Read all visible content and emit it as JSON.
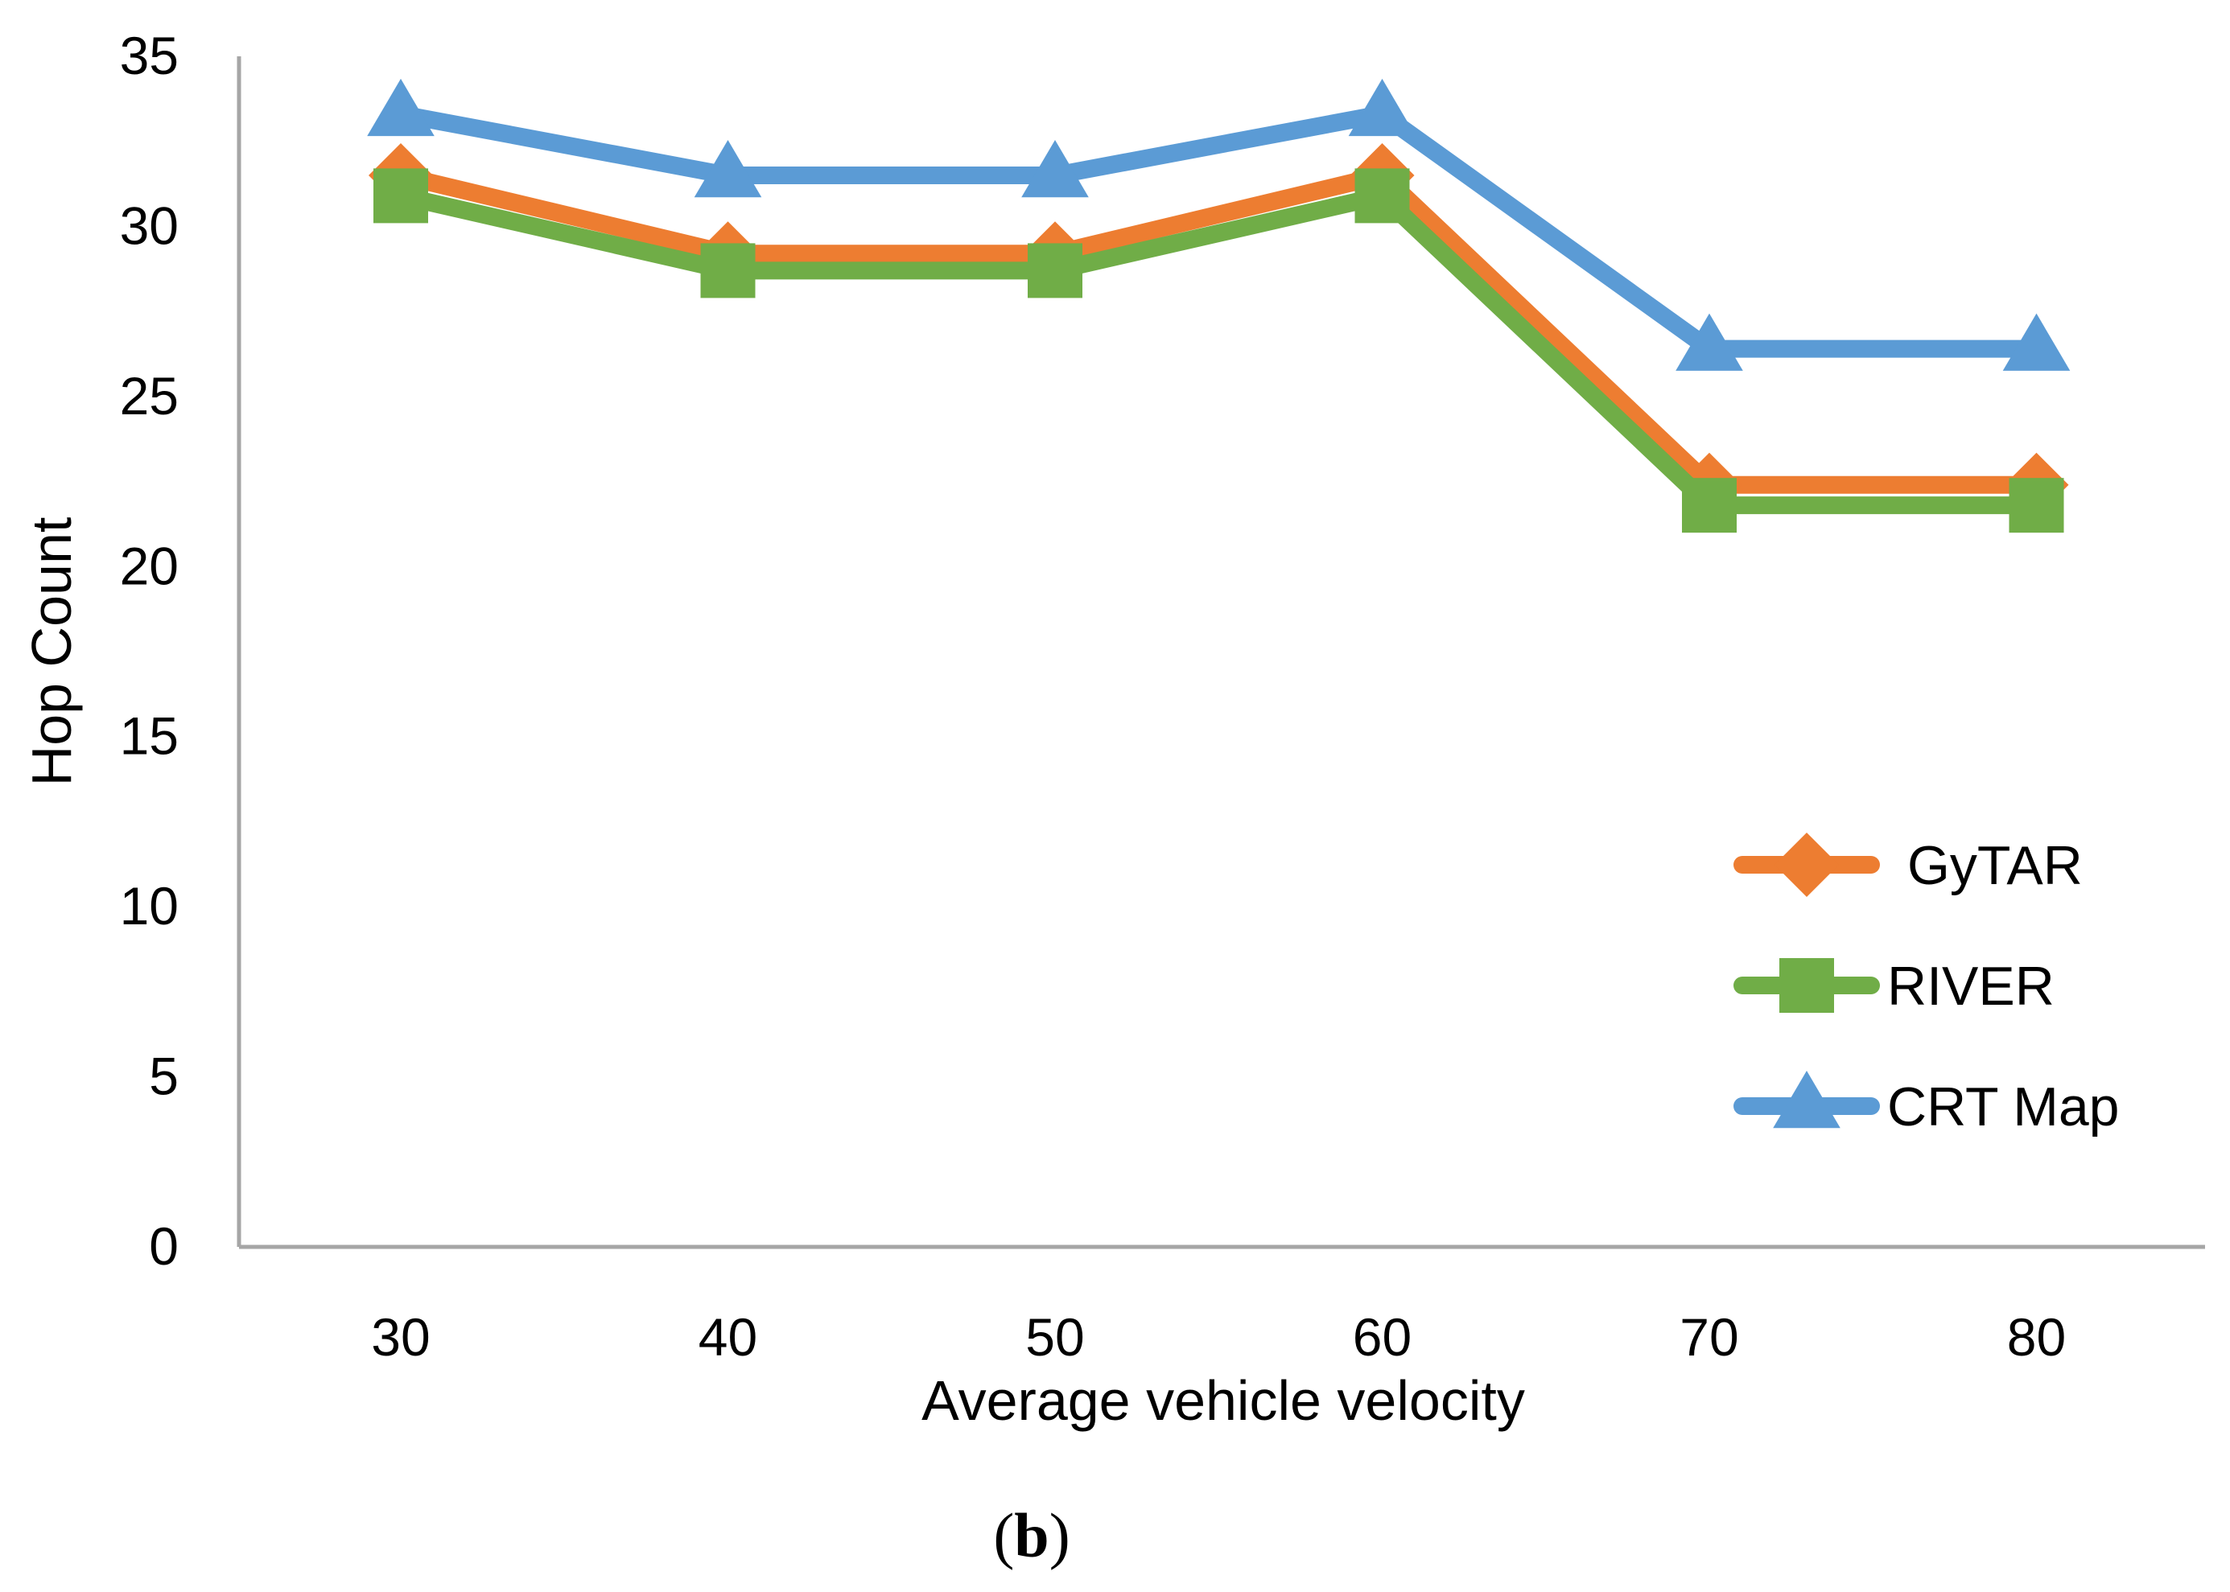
{
  "chart_data": {
    "type": "line",
    "title": "",
    "xlabel": "Average vehicle velocity",
    "ylabel": "Hop Count",
    "categories": [
      "30",
      "40",
      "50",
      "60",
      "70",
      "80"
    ],
    "ylim": [
      0,
      35
    ],
    "yticks": [
      "0",
      "5",
      "10",
      "15",
      "20",
      "25",
      "30",
      "35"
    ],
    "grid": false,
    "legend_position": "right",
    "series": [
      {
        "name": "GyTAR",
        "marker": "diamond",
        "color": "#ED7D31",
        "values": [
          31.5,
          29.2,
          29.2,
          31.5,
          22.4,
          22.4
        ]
      },
      {
        "name": "RIVER",
        "marker": "square",
        "color": "#70AD47",
        "values": [
          30.9,
          28.7,
          28.7,
          30.9,
          21.8,
          21.8
        ]
      },
      {
        "name": "CRT Map",
        "marker": "triangle",
        "color": "#5B9BD5",
        "values": [
          33.3,
          31.5,
          31.5,
          33.3,
          26.4,
          26.4
        ]
      }
    ]
  },
  "caption": {
    "open": "(",
    "letter": "b",
    "close": ")"
  }
}
